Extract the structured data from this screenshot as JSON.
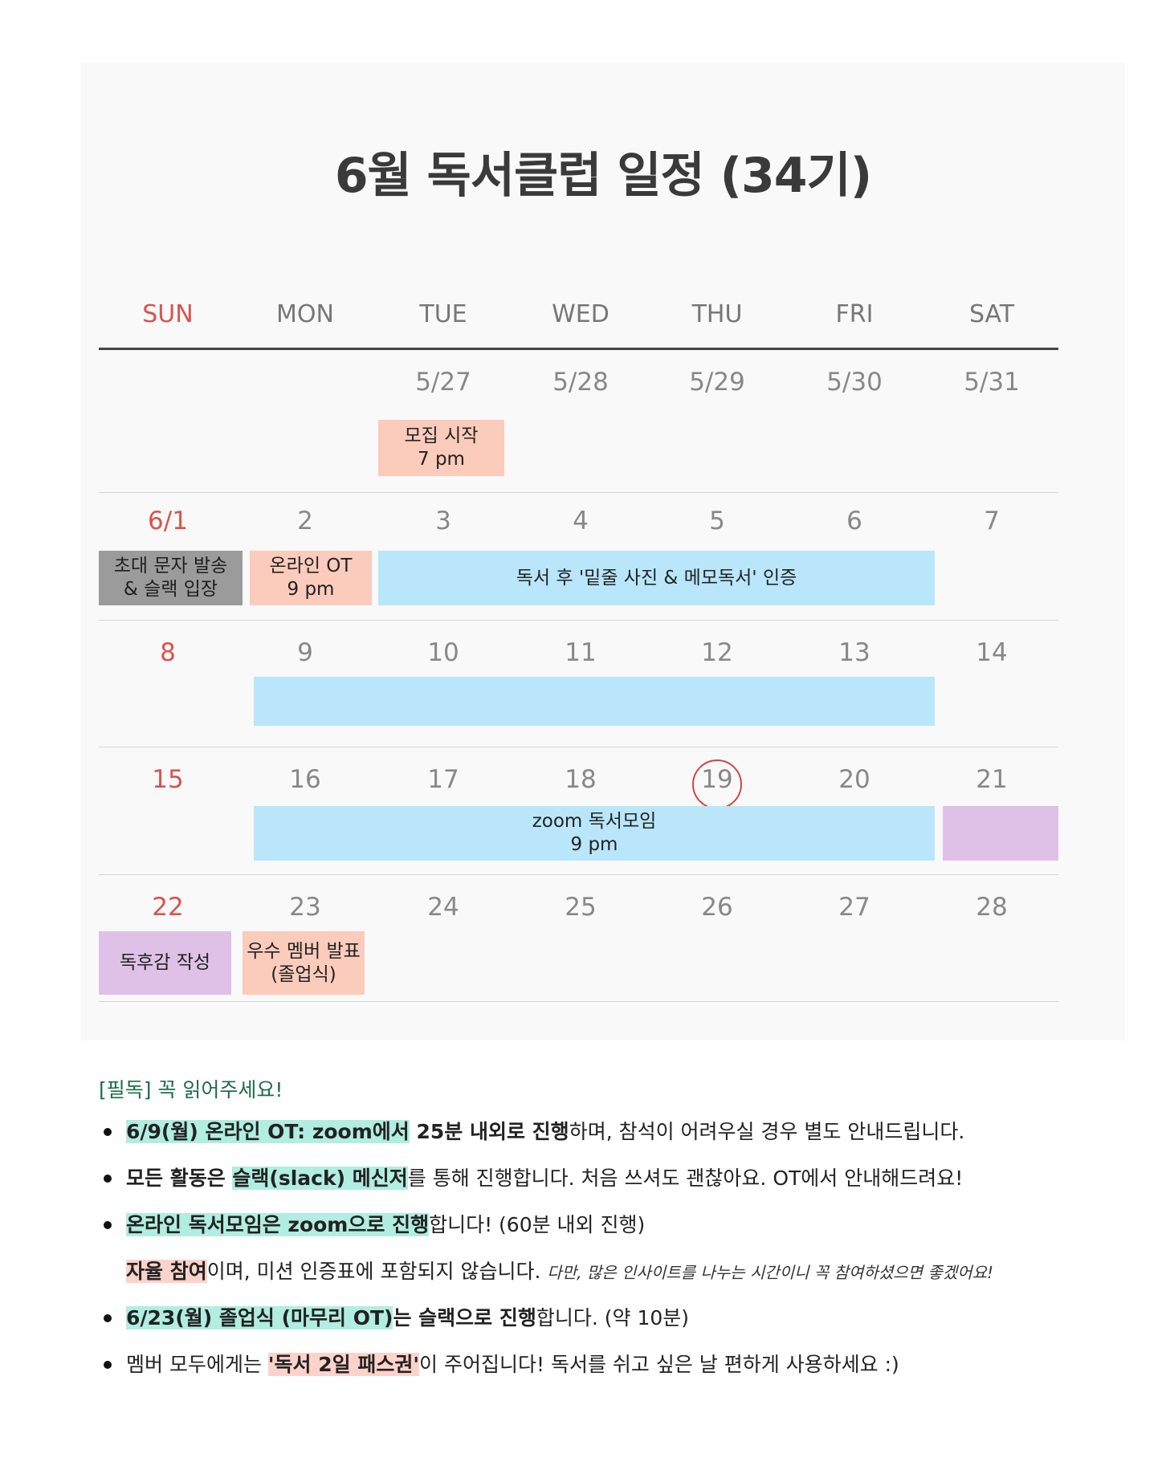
{
  "title": "6월 독서클럽 일정 (34기)",
  "weekdays": [
    "SUN",
    "MON",
    "TUE",
    "WED",
    "THU",
    "FRI",
    "SAT"
  ],
  "weeks": [
    [
      "",
      "",
      "5/27",
      "5/28",
      "5/29",
      "5/30",
      "5/31"
    ],
    [
      "6/1",
      "2",
      "3",
      "4",
      "5",
      "6",
      "7"
    ],
    [
      "8",
      "9",
      "10",
      "11",
      "12",
      "13",
      "14"
    ],
    [
      "15",
      "16",
      "17",
      "18",
      "19",
      "20",
      "21"
    ],
    [
      "22",
      "23",
      "24",
      "25",
      "26",
      "27",
      "28"
    ]
  ],
  "highlighted_date": "19",
  "events": {
    "recruit": [
      "모집 시작",
      "7 pm"
    ],
    "invite": [
      "초대 문자 발송",
      "& 슬랙 입장"
    ],
    "online_ot": [
      "온라인 OT",
      "9 pm"
    ],
    "reading_cert": "독서 후 '밑줄 사진 & 메모독서' 인증",
    "zoom_meeting": [
      "zoom 독서모임",
      "9 pm"
    ],
    "review": "독후감 작성",
    "best_member": [
      "우수 멤버 발표",
      "(졸업식)"
    ]
  },
  "colors": {
    "peach": "#fbcbbc",
    "gray": "#9b9b9b",
    "blue": "#b9e6fa",
    "lavender": "#dfc1e7",
    "sunday_red": "#d9534f",
    "notice_green": "#1f6b4d"
  },
  "notice": {
    "title": "[필독] 꼭 읽어주세요!",
    "n1": {
      "hl": "6/9(월) 온라인 OT: zoom에서",
      "bold": " 25분 내외로 진행",
      "rest": "하며, 참석이 어려우실 경우 별도 안내드립니다."
    },
    "n2": {
      "bold": "모든 활동은 ",
      "hl": "슬랙(slack) 메신저",
      "rest": "를 통해 진행합니다. 처음 쓰셔도 괜찮아요. OT에서 안내해드려요!"
    },
    "n3": {
      "hl": "온라인 독서모임은 zoom으로 진행",
      "rest": "합니다! (60분 내외 진행)"
    },
    "n3b": {
      "hl": "자율 참여",
      "rest": "이며, 미션 인증표에 포함되지 않습니다. ",
      "small": "다만, 많은 인사이트를 나누는 시간이니 꼭 참여하셨으면 좋겠어요!"
    },
    "n4": {
      "hl": "6/23(월) 졸업식 (마무리 OT)",
      "bold": "는 슬랙으로 진행",
      "rest": "합니다. (약 10분)"
    },
    "n5": {
      "pre": "멤버 모두에게는 ",
      "hl": "'독서 2일 패스권'",
      "rest": "이 주어집니다! 독서를 쉬고 싶은 날 편하게 사용하세요 :)"
    }
  }
}
